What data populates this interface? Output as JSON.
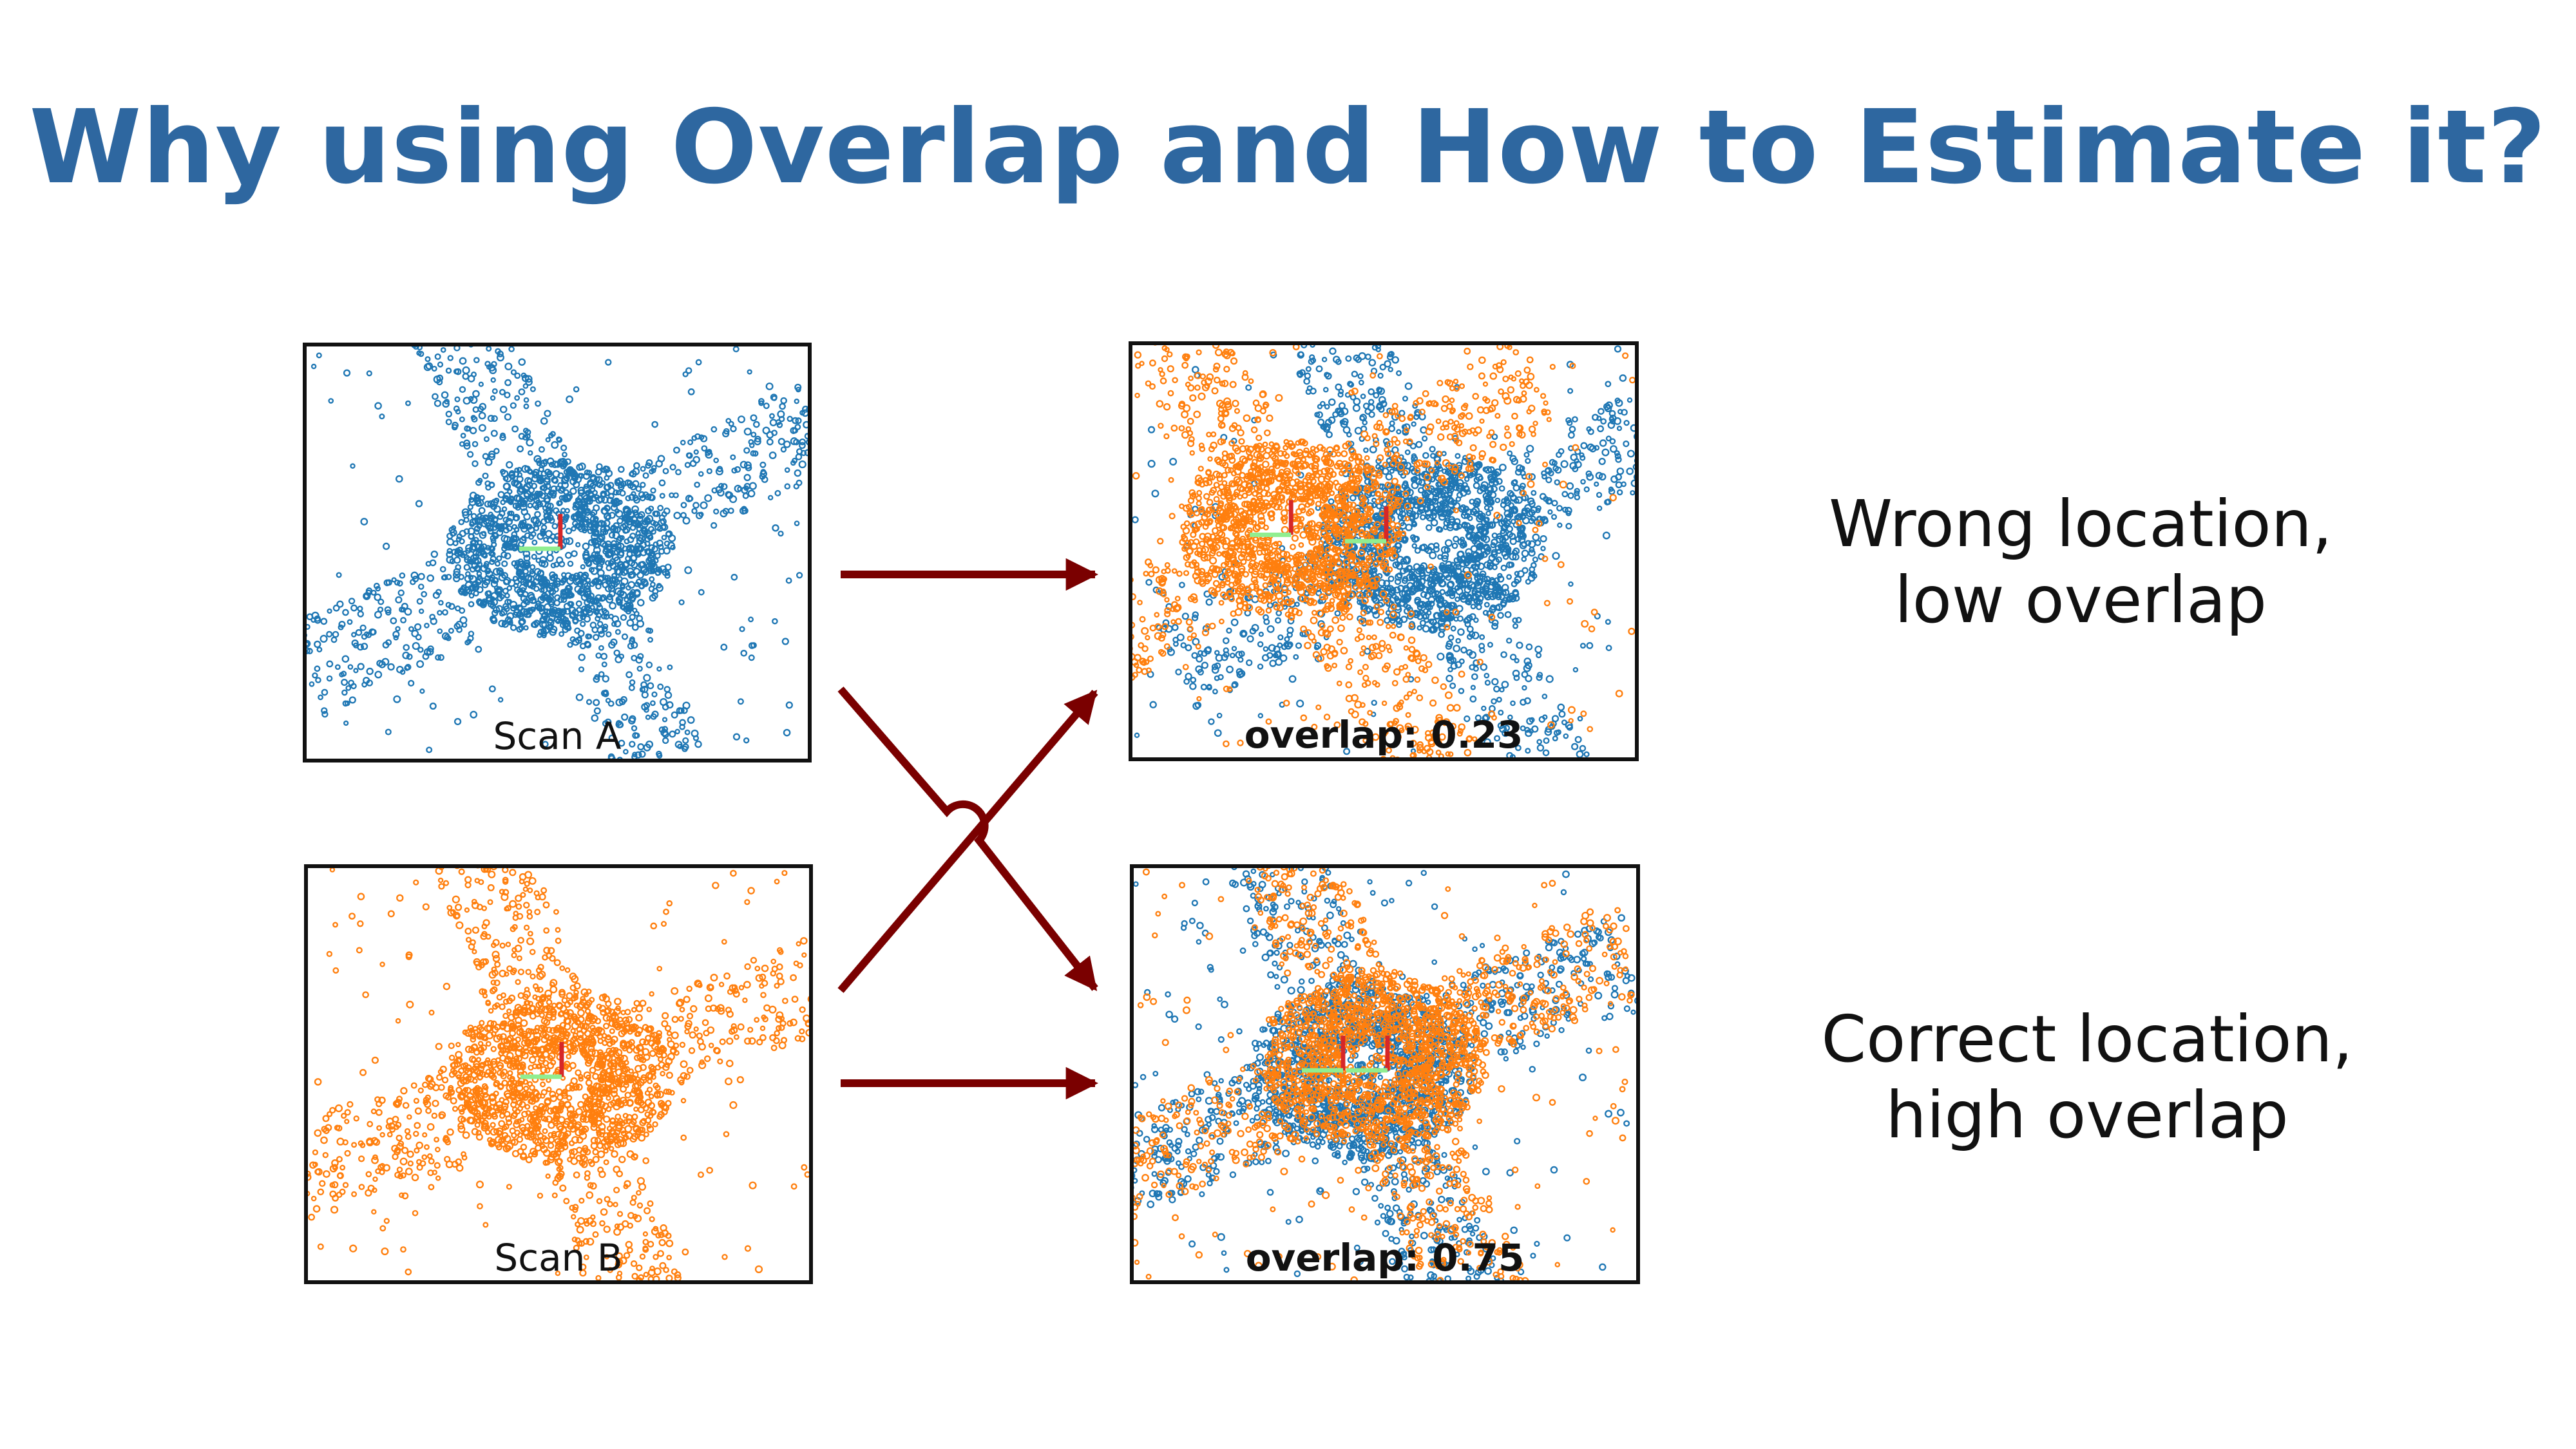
{
  "slide": {
    "title": "Why using Overlap and How to Estimate it?",
    "title_color": "#2e67a0"
  },
  "colors": {
    "scan_a": "#1f77b4",
    "scan_b": "#ff7f0e",
    "arrow": "#7a0000",
    "axis_x_red": "#d62728",
    "axis_y_green": "#90ee90"
  },
  "panels": {
    "scan_a": {
      "caption": "Scan A",
      "points": "blue",
      "icon": "point-cloud"
    },
    "scan_b": {
      "caption": "Scan B",
      "points": "orange",
      "icon": "point-cloud"
    },
    "result_wrong": {
      "caption": "overlap: 0.23",
      "overlap": 0.23,
      "icon": "overlaid-point-clouds"
    },
    "result_correct": {
      "caption": "overlap: 0.75",
      "overlap": 0.75,
      "icon": "overlaid-point-clouds"
    }
  },
  "labels": {
    "wrong": {
      "line1": "Wrong location,",
      "line2": "low overlap"
    },
    "correct": {
      "line1": "Correct location,",
      "line2": "high overlap"
    }
  }
}
